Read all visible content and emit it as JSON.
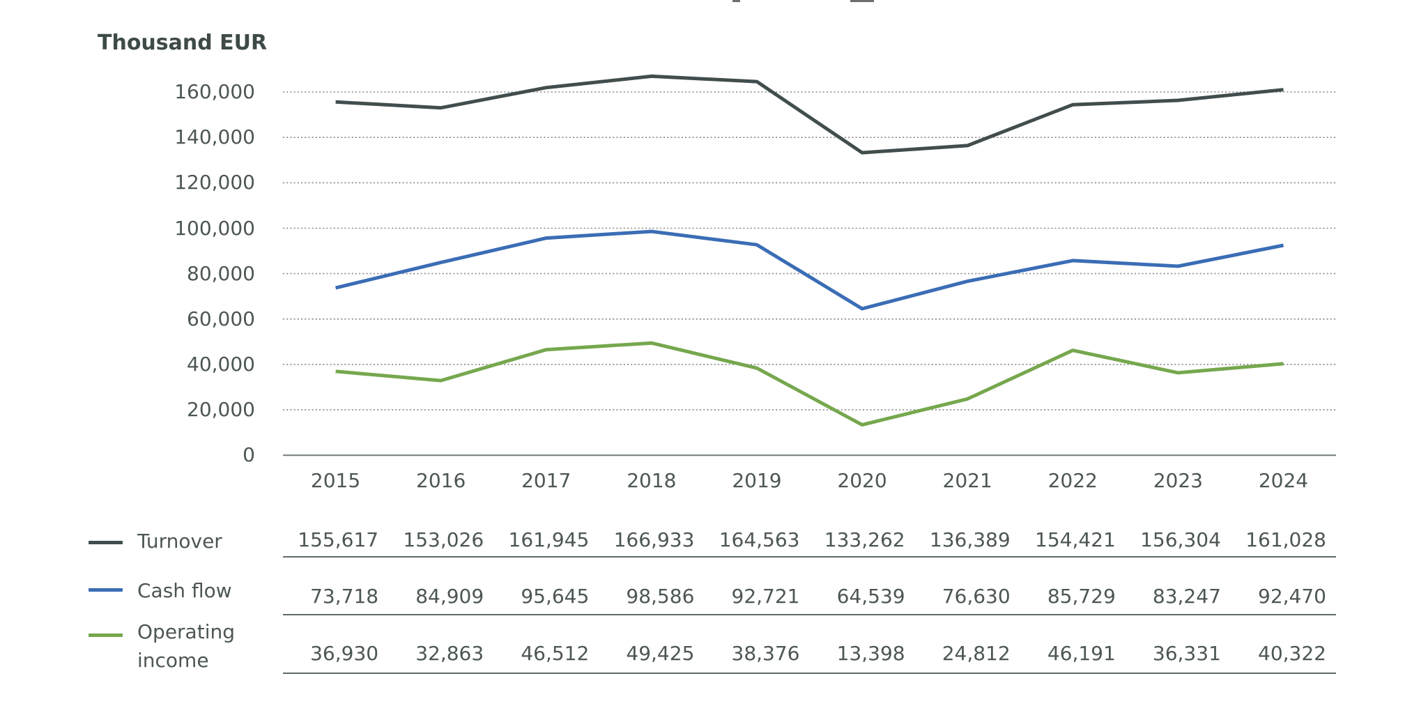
{
  "chart_data": {
    "type": "line",
    "unit": "Thousand EUR",
    "ylabel": "Thousand EUR",
    "categories": [
      "2015",
      "2016",
      "2017",
      "2018",
      "2019",
      "2020",
      "2021",
      "2022",
      "2023",
      "2024"
    ],
    "series": [
      {
        "name": "Turnover",
        "color": "#424d4d",
        "values": [
          155617,
          153026,
          161945,
          166933,
          164563,
          133262,
          136389,
          154421,
          156304,
          161028
        ]
      },
      {
        "name": "Cash flow",
        "color": "#3a6db5",
        "values": [
          73718,
          84909,
          95645,
          98586,
          92721,
          64539,
          76630,
          85729,
          83247,
          92470
        ]
      },
      {
        "name": "Operating income",
        "color": "#76a74e",
        "values": [
          36930,
          32863,
          46512,
          49425,
          38376,
          13398,
          24812,
          46191,
          36331,
          40322
        ]
      }
    ],
    "ylim": [
      0,
      170000
    ],
    "ytick_labels": [
      "160,000",
      "140,000",
      "120,000",
      "100,000",
      "80,000",
      "60,000",
      "40,000",
      "20,000",
      "0"
    ],
    "grid": "horizontal-dotted",
    "legend_position": "bottom-left-table"
  }
}
